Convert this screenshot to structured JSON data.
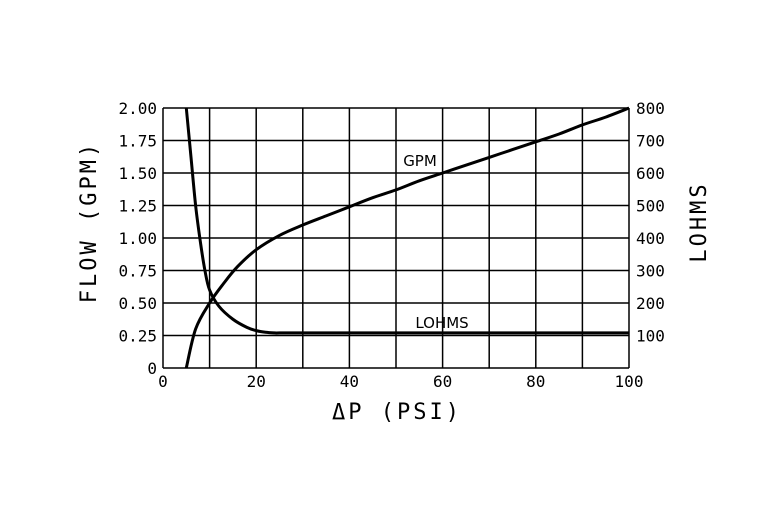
{
  "chart_data": {
    "type": "line",
    "xlabel": "ΔP (PSI)",
    "ylabel": "FLOW  (GPM)",
    "y2label": "LOHMS",
    "xlim": [
      0,
      100
    ],
    "ylim": [
      0,
      2.0
    ],
    "y2lim": [
      0,
      800
    ],
    "grid": true,
    "x_ticks": [
      "0",
      "20",
      "40",
      "60",
      "80",
      "100"
    ],
    "y_ticks": [
      "0",
      "0.25",
      "0.50",
      "0.75",
      "1.00",
      "1.25",
      "1.50",
      "1.75",
      "2.00"
    ],
    "y2_ticks": [
      "100",
      "200",
      "300",
      "400",
      "500",
      "600",
      "700",
      "800"
    ],
    "series": [
      {
        "name": "GPM",
        "axis": "left",
        "x": [
          5,
          7,
          10,
          13,
          16,
          20,
          25,
          30,
          35,
          40,
          45,
          50,
          55,
          60,
          65,
          70,
          75,
          80,
          85,
          90,
          95,
          100
        ],
        "y": [
          0,
          0.3,
          0.5,
          0.65,
          0.78,
          0.91,
          1.02,
          1.1,
          1.17,
          1.24,
          1.31,
          1.37,
          1.44,
          1.5,
          1.56,
          1.62,
          1.68,
          1.74,
          1.8,
          1.87,
          1.93,
          2.0
        ]
      },
      {
        "name": "LOHMS",
        "axis": "right",
        "x": [
          5,
          6,
          7,
          8,
          9,
          10,
          12,
          15,
          18,
          20,
          22,
          24,
          25,
          30,
          40,
          60,
          80,
          100
        ],
        "y": [
          800,
          650,
          500,
          390,
          300,
          240,
          190,
          150,
          125,
          115,
          110,
          108,
          108,
          108,
          108,
          108,
          108,
          108
        ]
      }
    ]
  }
}
